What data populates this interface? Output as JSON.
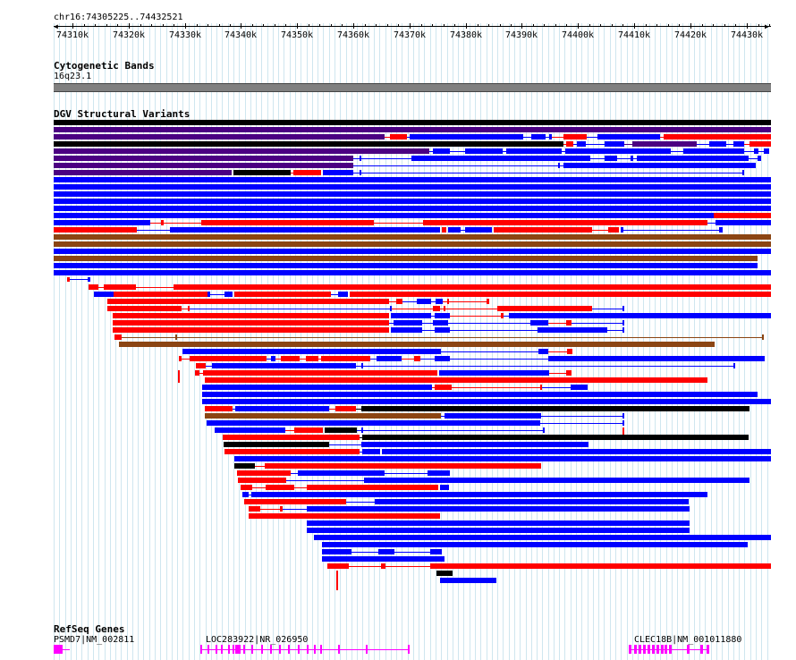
{
  "ruler": {
    "position_label": "chr16:74305225..74432521",
    "ticks": [
      "74310k",
      "74320k",
      "74330k",
      "74340k",
      "74350k",
      "74360k",
      "74370k",
      "74380k",
      "74390k",
      "74400k",
      "74410k",
      "74420k",
      "74430k"
    ]
  },
  "cytoband": {
    "title": "Cytogenetic Bands",
    "band_label": "16q23.1",
    "band_color": "#808080"
  },
  "dgv": {
    "title": "DGV Structural Variants",
    "colors": {
      "loss": "#ff0000",
      "gain": "#0000ff",
      "inversion": "#8b4513",
      "complex": "#4b0082",
      "other": "#000000"
    }
  },
  "refseq": {
    "title": "RefSeq Genes",
    "genes": [
      {
        "label": "PSMD7|NM_002811",
        "color": "#ff00ff"
      },
      {
        "label": "LOC283922|NR_026950",
        "color": "#ff00ff"
      },
      {
        "label": "CLEC18B|NM_001011880",
        "color": "#ff00ff"
      }
    ]
  }
}
